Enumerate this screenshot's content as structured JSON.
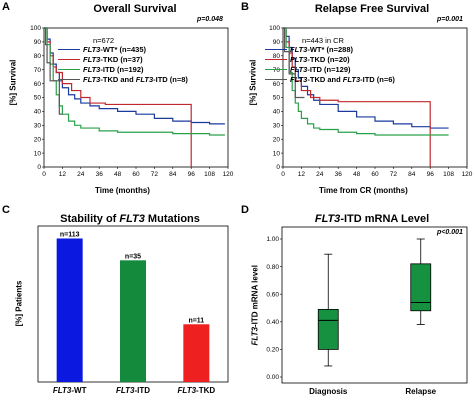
{
  "panels": {
    "A": {
      "letter": "A",
      "title": "Overall Survival",
      "pvalue": "p=0.048",
      "n_note": "n=672",
      "ylabel": "[%] Survival",
      "xlabel": "Time (months)",
      "legend": [
        {
          "gene": "FLT3",
          "rest": "-WT* (n=435)",
          "color": "#1a3a9e"
        },
        {
          "gene": "FLT3",
          "rest": "-TKD (n=37)",
          "color": "#c0282d"
        },
        {
          "gene": "FLT3",
          "rest": "-ITD (n=192)",
          "color": "#2aa04a"
        },
        {
          "gene": "FLT3",
          "rest": "-TKD and ",
          "gene2": "FLT3",
          "rest2": "-ITD (n=8)",
          "color": "#555555"
        }
      ]
    },
    "B": {
      "letter": "B",
      "title": "Relapse Free Survival",
      "pvalue": "p=0.001",
      "n_note": "n=443 in CR",
      "ylabel": "[%] Survival",
      "xlabel": "Time from CR (months)",
      "legend": [
        {
          "gene": "FLT3",
          "rest": "-WT* (n=288)",
          "color": "#1a3a9e"
        },
        {
          "gene": "FLT3",
          "rest": "-TKD (n=20)",
          "color": "#c0282d"
        },
        {
          "gene": "FLT3",
          "rest": "-ITD (n=129)",
          "color": "#2aa04a"
        },
        {
          "gene": "FLT3",
          "rest": "-TKD and ",
          "gene2": "FLT3",
          "rest2": "-ITD (n=6)",
          "color": "#555555"
        }
      ]
    },
    "C": {
      "letter": "C",
      "title_pre": "Stability of ",
      "title_gene": "FLT3",
      "title_post": " Mutations",
      "ylabel": "[%] Patients",
      "categories": [
        {
          "gene": "FLT3",
          "rest": "-WT"
        },
        {
          "gene": "FLT3",
          "rest": "-ITD"
        },
        {
          "gene": "FLT3",
          "rest": "-TKD"
        }
      ]
    },
    "D": {
      "letter": "D",
      "title_gene": "FLT3",
      "title_post": "-ITD mRNA Level",
      "pvalue": "p<0.001",
      "ylabel_gene": "FLT3",
      "ylabel_post": "-ITD mRNA level",
      "categories": [
        "Diagnosis",
        "Relapse"
      ]
    }
  },
  "chart_data": [
    {
      "type": "line",
      "panel": "A",
      "title": "Overall Survival",
      "xlabel": "Time (months)",
      "ylabel": "[%] Survival",
      "xlim": [
        0,
        120
      ],
      "ylim": [
        0,
        100
      ],
      "xticks": [
        0,
        12,
        24,
        36,
        48,
        60,
        72,
        84,
        96,
        108,
        120
      ],
      "yticks": [
        0,
        10,
        20,
        30,
        40,
        50,
        60,
        70,
        80,
        90,
        100
      ],
      "series": [
        {
          "name": "FLT3-WT* (n=435)",
          "color": "#1a3a9e",
          "x": [
            0,
            2,
            4,
            6,
            8,
            10,
            12,
            16,
            20,
            24,
            30,
            36,
            48,
            60,
            72,
            84,
            96,
            108,
            118
          ],
          "y": [
            100,
            92,
            82,
            74,
            68,
            62,
            57,
            52,
            49,
            46,
            44,
            42,
            40,
            38,
            35,
            33,
            32,
            31,
            31
          ]
        },
        {
          "name": "FLT3-TKD (n=37)",
          "color": "#c0282d",
          "x": [
            0,
            2,
            4,
            6,
            8,
            12,
            18,
            24,
            30,
            40,
            60,
            84,
            96,
            96
          ],
          "y": [
            100,
            90,
            80,
            72,
            68,
            60,
            55,
            50,
            46,
            45,
            45,
            45,
            45,
            0
          ]
        },
        {
          "name": "FLT3-ITD (n=192)",
          "color": "#2aa04a",
          "x": [
            0,
            2,
            4,
            6,
            8,
            10,
            12,
            16,
            20,
            24,
            36,
            48,
            60,
            84,
            108,
            118
          ],
          "y": [
            100,
            88,
            74,
            62,
            52,
            44,
            38,
            33,
            30,
            28,
            26,
            25,
            25,
            24,
            23,
            23
          ]
        },
        {
          "name": "FLT3-TKD and FLT3-ITD (n=8)",
          "color": "#555555",
          "x": [
            0,
            1,
            2,
            3,
            4,
            6,
            8,
            10,
            12
          ],
          "y": [
            100,
            88,
            75,
            75,
            62,
            62,
            62,
            38,
            38
          ]
        }
      ]
    },
    {
      "type": "line",
      "panel": "B",
      "title": "Relapse Free Survival",
      "xlabel": "Time from CR (months)",
      "ylabel": "[%] Survival",
      "xlim": [
        0,
        120
      ],
      "ylim": [
        0,
        100
      ],
      "xticks": [
        0,
        12,
        24,
        36,
        48,
        60,
        72,
        84,
        96,
        108,
        120
      ],
      "yticks": [
        0,
        10,
        20,
        30,
        40,
        50,
        60,
        70,
        80,
        90,
        100
      ],
      "series": [
        {
          "name": "FLT3-WT* (n=288)",
          "color": "#1a3a9e",
          "x": [
            0,
            2,
            4,
            6,
            8,
            10,
            12,
            16,
            20,
            24,
            36,
            48,
            60,
            72,
            84,
            96,
            108
          ],
          "y": [
            100,
            94,
            86,
            78,
            70,
            64,
            58,
            52,
            48,
            45,
            40,
            36,
            33,
            31,
            29,
            28,
            28
          ]
        },
        {
          "name": "FLT3-TKD (n=20)",
          "color": "#c0282d",
          "x": [
            0,
            2,
            4,
            6,
            8,
            12,
            18,
            24,
            36,
            60,
            84,
            96,
            96
          ],
          "y": [
            100,
            90,
            82,
            72,
            62,
            55,
            50,
            48,
            47,
            47,
            47,
            47,
            0
          ]
        },
        {
          "name": "FLT3-ITD (n=129)",
          "color": "#2aa04a",
          "x": [
            0,
            2,
            4,
            6,
            8,
            10,
            12,
            16,
            20,
            24,
            36,
            48,
            60,
            84,
            108
          ],
          "y": [
            100,
            86,
            68,
            55,
            46,
            40,
            35,
            31,
            28,
            27,
            25,
            24,
            23,
            23,
            23
          ]
        },
        {
          "name": "FLT3-TKD and FLT3-ITD (n=6)",
          "color": "#555555",
          "x": [
            0,
            1,
            2,
            4,
            6,
            8,
            10,
            14
          ],
          "y": [
            100,
            83,
            83,
            67,
            67,
            50,
            50,
            50
          ]
        }
      ]
    },
    {
      "type": "bar",
      "panel": "C",
      "title": "Stability of FLT3 Mutations",
      "ylabel": "[%] Patients",
      "ylim": [
        0,
        100
      ],
      "categories": [
        "FLT3-WT",
        "FLT3-ITD",
        "FLT3-TKD"
      ],
      "values": [
        92,
        78,
        37
      ],
      "labels": [
        "n=113",
        "n=35",
        "n=11"
      ],
      "colors": [
        "#0a18e0",
        "#138a3c",
        "#ef2020"
      ]
    },
    {
      "type": "box",
      "panel": "D",
      "title": "FLT3-ITD mRNA Level",
      "ylabel": "FLT3-ITD mRNA level",
      "ylim": [
        0,
        1.0
      ],
      "yticks": [
        "0.00",
        "0.20",
        "0.40",
        "0.60",
        "0.80",
        "1.00"
      ],
      "categories": [
        "Diagnosis",
        "Relapse"
      ],
      "boxes": [
        {
          "min": 0.08,
          "q1": 0.2,
          "median": 0.41,
          "q3": 0.49,
          "max": 0.89
        },
        {
          "min": 0.38,
          "q1": 0.48,
          "median": 0.54,
          "q3": 0.82,
          "max": 1.0
        }
      ],
      "color": "#16913f"
    }
  ]
}
